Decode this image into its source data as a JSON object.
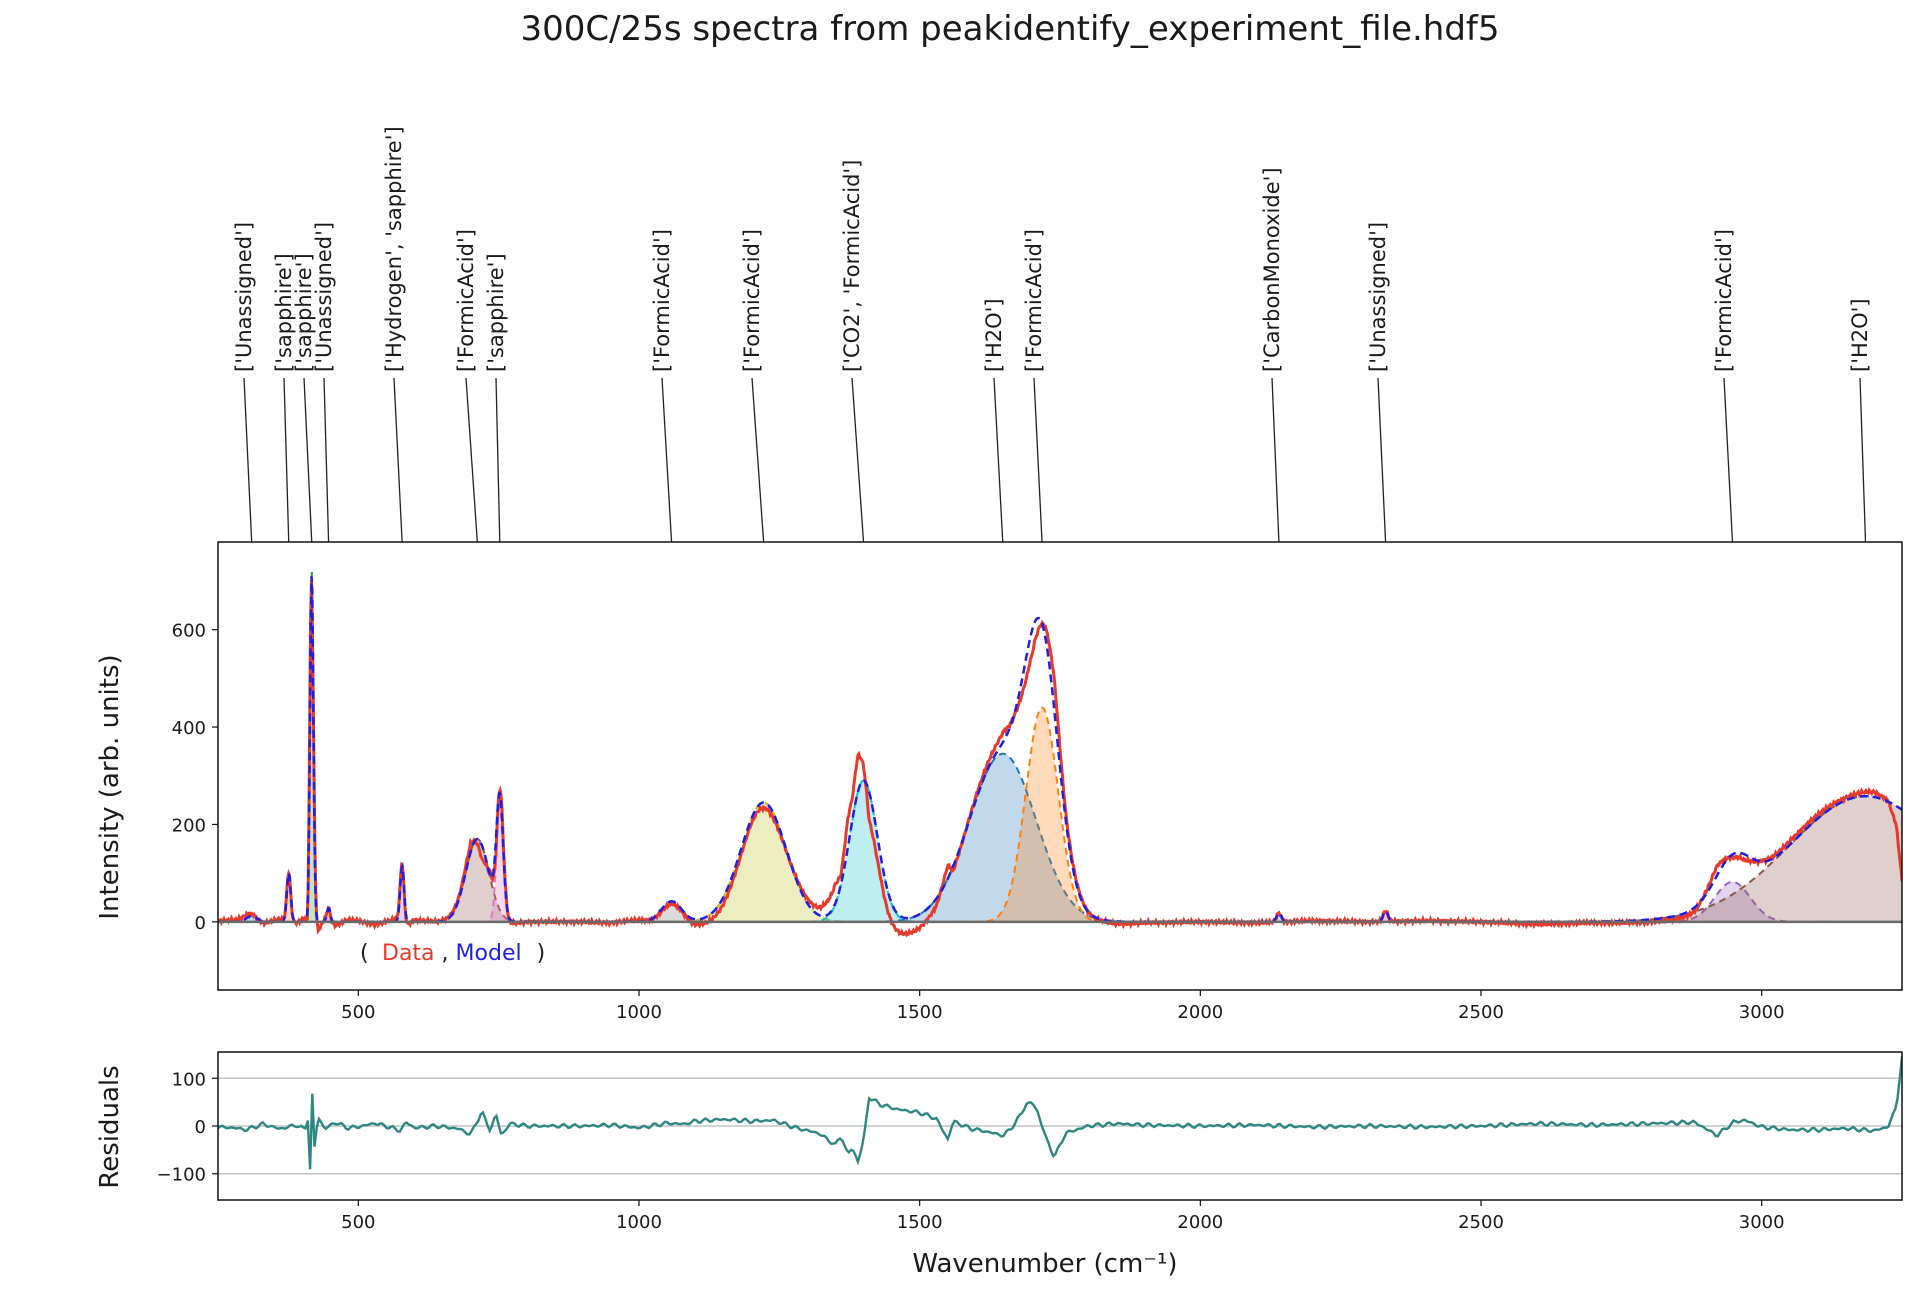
{
  "chart_data": [
    {
      "type": "line",
      "title": "300C/25s spectra from peakidentify_experiment_file.hdf5",
      "xlabel": "",
      "ylabel": "Intensity (arb. units)",
      "xlim": [
        250,
        3250
      ],
      "ylim": [
        -140,
        780
      ],
      "xticks": [
        500,
        1000,
        1500,
        2000,
        2500,
        3000
      ],
      "yticks": [
        0,
        200,
        400,
        600
      ],
      "legend": {
        "open": "(",
        "data": "Data",
        "sep": ",",
        "model": "Model",
        "close": ")",
        "data_color": "#e8392d",
        "model_color": "#1f1fe0"
      },
      "series": [
        {
          "name": "Data",
          "color": "#e8392d"
        },
        {
          "name": "Model",
          "color": "#1f1fe0"
        }
      ],
      "components": [
        {
          "center": 310,
          "height": 12,
          "fwhm": 22,
          "color": "#1f77b4"
        },
        {
          "center": 376,
          "height": 100,
          "fwhm": 8,
          "color": "#ff7f0e"
        },
        {
          "center": 417,
          "height": 720,
          "fwhm": 7,
          "color": "#2ca02c"
        },
        {
          "center": 447,
          "height": 28,
          "fwhm": 7,
          "color": "#d62728"
        },
        {
          "center": 578,
          "height": 115,
          "fwhm": 8,
          "color": "#9467bd"
        },
        {
          "center": 712,
          "height": 170,
          "fwhm": 48,
          "color": "#8c564b"
        },
        {
          "center": 752,
          "height": 240,
          "fwhm": 14,
          "color": "#e377c2"
        },
        {
          "center": 1058,
          "height": 42,
          "fwhm": 42,
          "color": "#7f7f7f"
        },
        {
          "center": 1222,
          "height": 245,
          "fwhm": 95,
          "color": "#bcbd22"
        },
        {
          "center": 1400,
          "height": 290,
          "fwhm": 58,
          "color": "#17becf"
        },
        {
          "center": 1648,
          "height": 345,
          "fwhm": 140,
          "color": "#1f77b4"
        },
        {
          "center": 1718,
          "height": 440,
          "fwhm": 68,
          "color": "#ff7f0e"
        },
        {
          "center": 2140,
          "height": 18,
          "fwhm": 10,
          "color": "#2ca02c"
        },
        {
          "center": 2330,
          "height": 22,
          "fwhm": 10,
          "color": "#d62728"
        },
        {
          "center": 2948,
          "height": 82,
          "fwhm": 75,
          "color": "#9467bd"
        },
        {
          "center": 3185,
          "height": 258,
          "fwhm": 320,
          "color": "#8c564b"
        }
      ],
      "peak_labels": [
        {
          "x": 310,
          "text": "['Unassigned']"
        },
        {
          "x": 376,
          "text": "['sapphire']"
        },
        {
          "x": 417,
          "text": "['sapphire']"
        },
        {
          "x": 447,
          "text": "['Unassigned']"
        },
        {
          "x": 578,
          "text": "['Hydrogen', 'sapphire']"
        },
        {
          "x": 712,
          "text": "['FormicAcid']"
        },
        {
          "x": 752,
          "text": "['sapphire']"
        },
        {
          "x": 1058,
          "text": "['FormicAcid']"
        },
        {
          "x": 1222,
          "text": "['FormicAcid']"
        },
        {
          "x": 1400,
          "text": "['CO2', 'FormicAcid']"
        },
        {
          "x": 1648,
          "text": "['H2O']"
        },
        {
          "x": 1718,
          "text": "['FormicAcid']"
        },
        {
          "x": 2140,
          "text": "['CarbonMonoxide']"
        },
        {
          "x": 2330,
          "text": "['Unassigned']"
        },
        {
          "x": 2948,
          "text": "['FormicAcid']"
        },
        {
          "x": 3185,
          "text": "['H2O']"
        }
      ]
    },
    {
      "type": "line",
      "title": "",
      "xlabel": "Wavenumber (cm⁻¹)",
      "ylabel": "Residuals",
      "xlim": [
        250,
        3250
      ],
      "ylim": [
        -155,
        155
      ],
      "xticks": [
        500,
        1000,
        1500,
        2000,
        2500,
        3000
      ],
      "yticks": [
        100,
        0,
        -100
      ],
      "series": [
        {
          "name": "Residuals",
          "color": "#2e8682",
          "points": [
            [
              250,
              -2
            ],
            [
              280,
              -4
            ],
            [
              300,
              -8
            ],
            [
              330,
              4
            ],
            [
              360,
              -6
            ],
            [
              390,
              2
            ],
            [
              405,
              -8
            ],
            [
              410,
              15
            ],
            [
              414,
              -90
            ],
            [
              418,
              65
            ],
            [
              422,
              -45
            ],
            [
              428,
              20
            ],
            [
              440,
              -6
            ],
            [
              460,
              8
            ],
            [
              480,
              -4
            ],
            [
              500,
              -2
            ],
            [
              530,
              6
            ],
            [
              560,
              -4
            ],
            [
              575,
              -10
            ],
            [
              585,
              8
            ],
            [
              600,
              -4
            ],
            [
              640,
              0
            ],
            [
              680,
              -6
            ],
            [
              700,
              -18
            ],
            [
              720,
              30
            ],
            [
              735,
              -10
            ],
            [
              745,
              25
            ],
            [
              755,
              -20
            ],
            [
              770,
              5
            ],
            [
              800,
              0
            ],
            [
              900,
              0
            ],
            [
              950,
              2
            ],
            [
              1000,
              -4
            ],
            [
              1050,
              6
            ],
            [
              1080,
              4
            ],
            [
              1100,
              10
            ],
            [
              1150,
              14
            ],
            [
              1200,
              10
            ],
            [
              1240,
              12
            ],
            [
              1280,
              -4
            ],
            [
              1320,
              -15
            ],
            [
              1350,
              -40
            ],
            [
              1360,
              -20
            ],
            [
              1372,
              -60
            ],
            [
              1380,
              -45
            ],
            [
              1390,
              -75
            ],
            [
              1400,
              -30
            ],
            [
              1410,
              60
            ],
            [
              1430,
              45
            ],
            [
              1460,
              35
            ],
            [
              1500,
              28
            ],
            [
              1530,
              15
            ],
            [
              1550,
              -28
            ],
            [
              1560,
              10
            ],
            [
              1590,
              -5
            ],
            [
              1620,
              -12
            ],
            [
              1650,
              -20
            ],
            [
              1670,
              5
            ],
            [
              1690,
              45
            ],
            [
              1700,
              50
            ],
            [
              1710,
              30
            ],
            [
              1725,
              -25
            ],
            [
              1740,
              -65
            ],
            [
              1760,
              -15
            ],
            [
              1800,
              0
            ],
            [
              1850,
              5
            ],
            [
              1900,
              2
            ],
            [
              2000,
              0
            ],
            [
              2100,
              2
            ],
            [
              2200,
              -2
            ],
            [
              2300,
              0
            ],
            [
              2400,
              -2
            ],
            [
              2500,
              0
            ],
            [
              2600,
              5
            ],
            [
              2700,
              2
            ],
            [
              2800,
              5
            ],
            [
              2880,
              8
            ],
            [
              2900,
              -5
            ],
            [
              2920,
              -20
            ],
            [
              2950,
              8
            ],
            [
              2970,
              12
            ],
            [
              3000,
              -2
            ],
            [
              3050,
              -8
            ],
            [
              3100,
              -8
            ],
            [
              3150,
              -5
            ],
            [
              3200,
              -10
            ],
            [
              3225,
              -2
            ],
            [
              3240,
              40
            ],
            [
              3250,
              145
            ]
          ]
        }
      ]
    }
  ]
}
